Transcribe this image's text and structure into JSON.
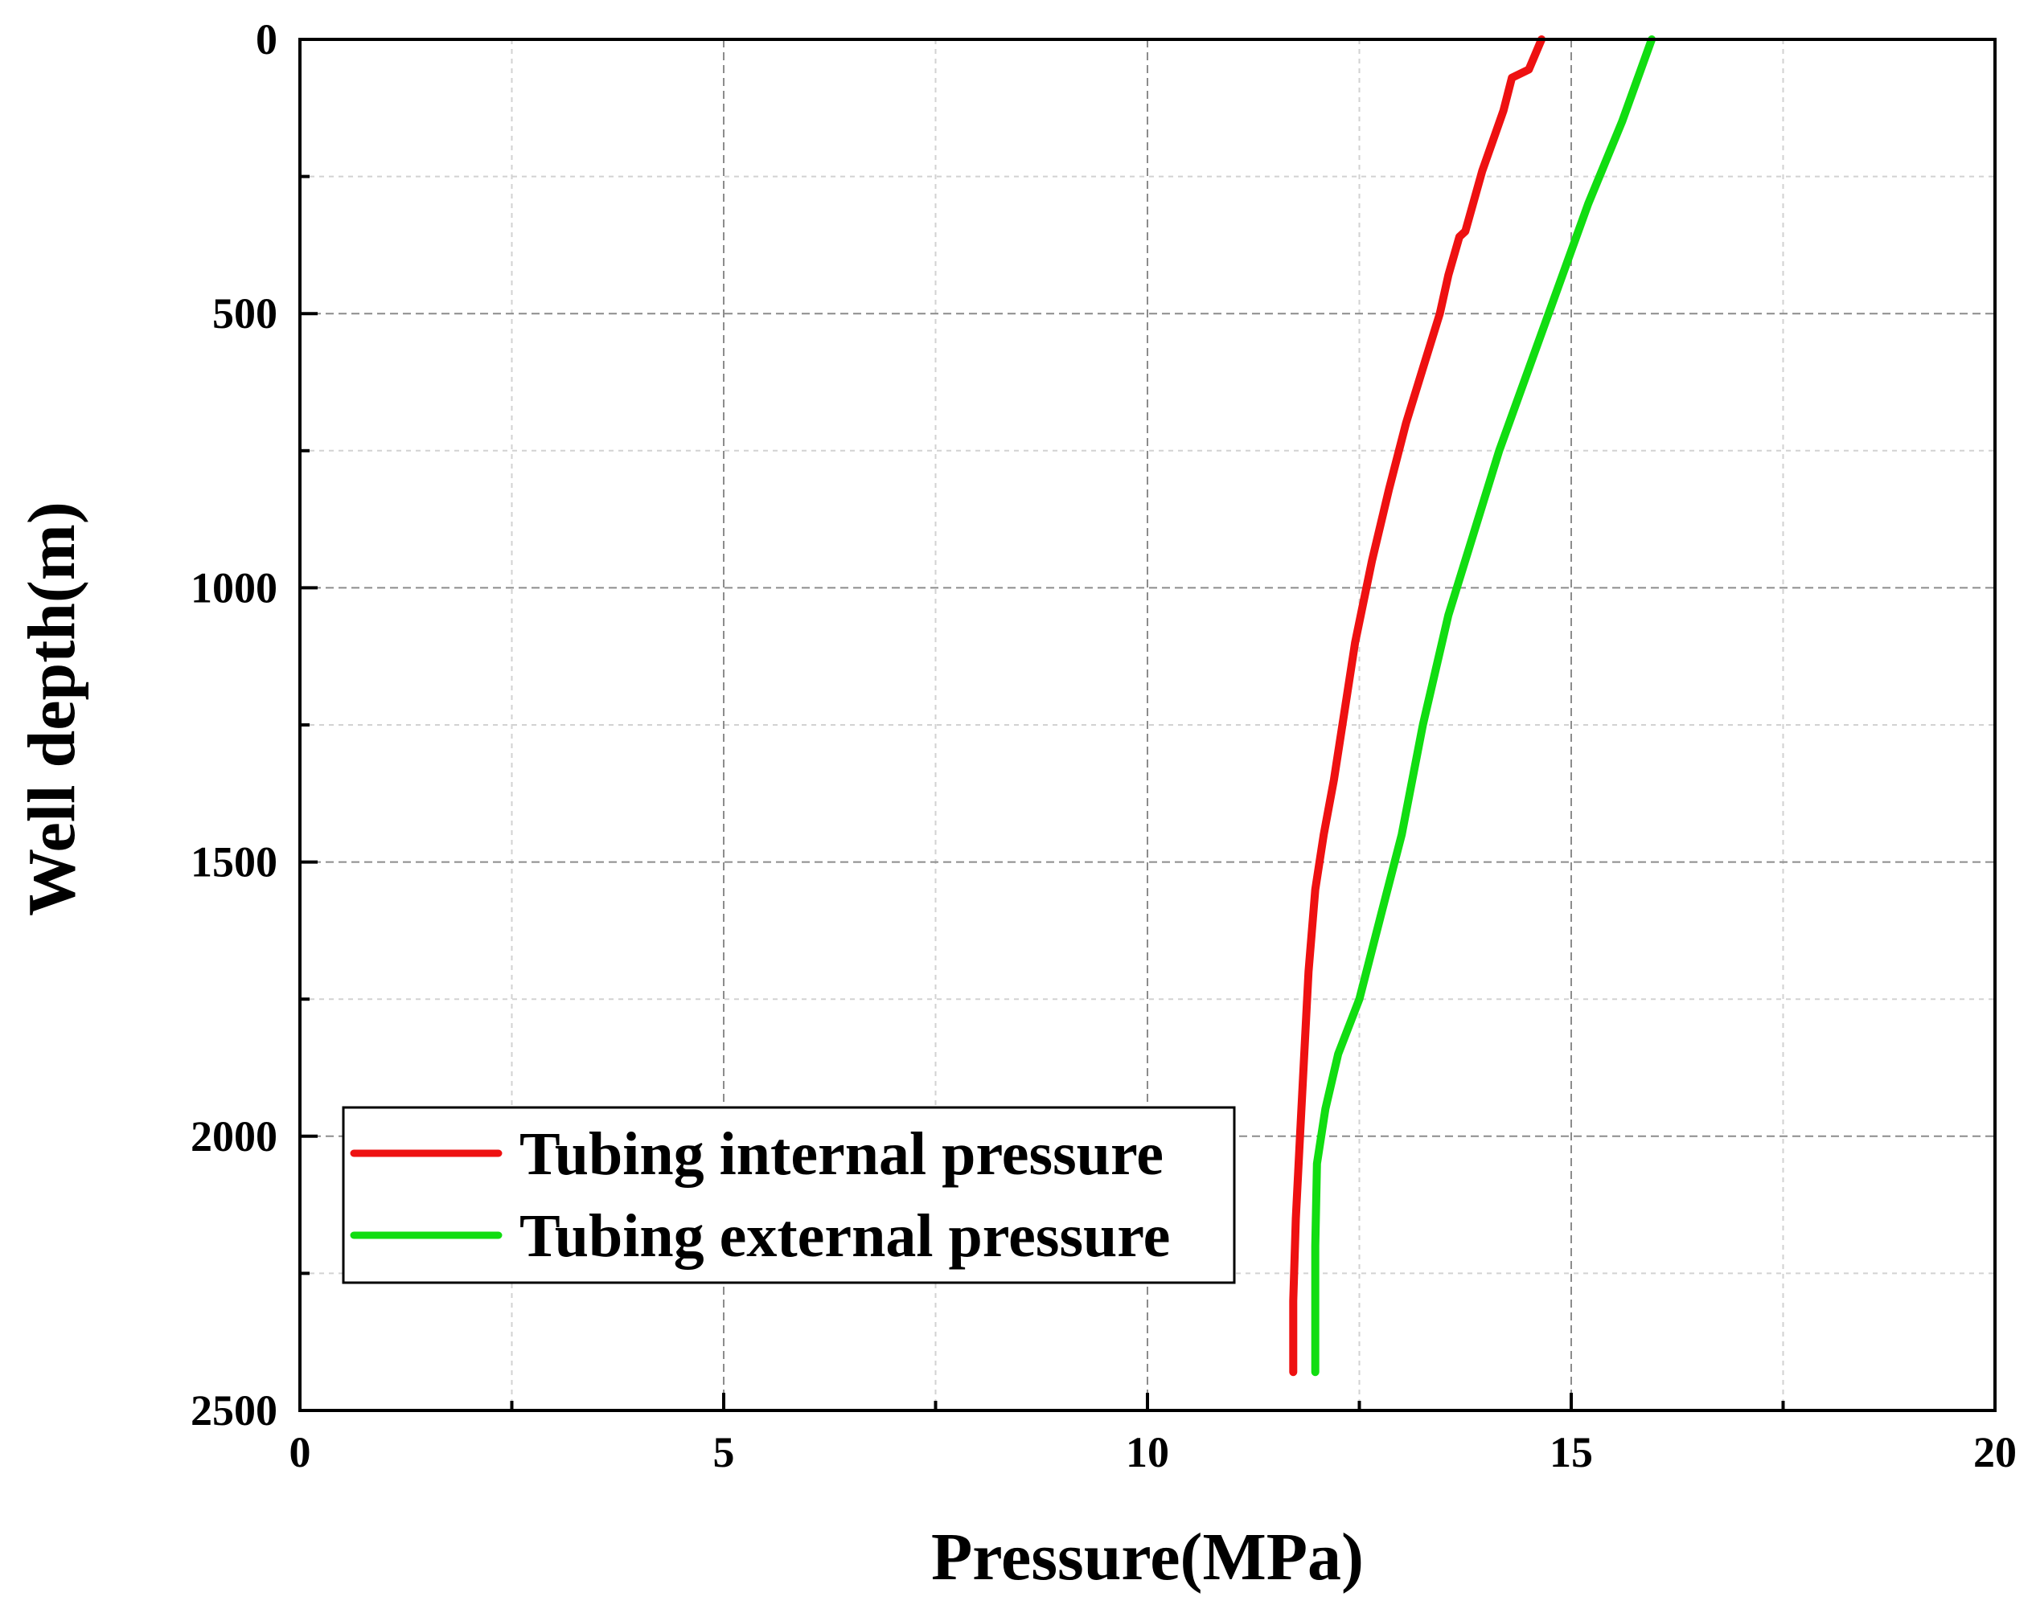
{
  "chart_data": {
    "type": "line",
    "title": "",
    "xlabel": "Pressure(MPa)",
    "ylabel": "Well depth(m)",
    "xlim": [
      0,
      20
    ],
    "ylim": [
      0,
      2500
    ],
    "y_inverted": true,
    "x_ticks": [
      "0",
      "5",
      "10",
      "15",
      "20"
    ],
    "y_ticks": [
      "0",
      "500",
      "1000",
      "1500",
      "2000",
      "2500"
    ],
    "grid": true,
    "legend_position": "lower-left",
    "series": [
      {
        "name": "Tubing internal pressure",
        "color": "#ee1111",
        "points": [
          [
            14.65,
            0
          ],
          [
            14.5,
            55
          ],
          [
            14.3,
            70
          ],
          [
            14.2,
            130
          ],
          [
            13.95,
            240
          ],
          [
            13.75,
            350
          ],
          [
            13.68,
            360
          ],
          [
            13.55,
            430
          ],
          [
            13.45,
            500
          ],
          [
            13.25,
            600
          ],
          [
            13.05,
            700
          ],
          [
            12.85,
            820
          ],
          [
            12.65,
            950
          ],
          [
            12.45,
            1100
          ],
          [
            12.35,
            1200
          ],
          [
            12.2,
            1350
          ],
          [
            12.08,
            1450
          ],
          [
            11.98,
            1550
          ],
          [
            11.9,
            1700
          ],
          [
            11.85,
            1850
          ],
          [
            11.8,
            2000
          ],
          [
            11.75,
            2150
          ],
          [
            11.72,
            2300
          ],
          [
            11.72,
            2430
          ]
        ]
      },
      {
        "name": "Tubing external pressure",
        "color": "#11dd11",
        "points": [
          [
            15.95,
            0
          ],
          [
            15.6,
            150
          ],
          [
            15.2,
            300
          ],
          [
            14.85,
            450
          ],
          [
            14.5,
            600
          ],
          [
            14.15,
            750
          ],
          [
            13.85,
            900
          ],
          [
            13.55,
            1050
          ],
          [
            13.25,
            1250
          ],
          [
            13.0,
            1450
          ],
          [
            12.75,
            1600
          ],
          [
            12.5,
            1750
          ],
          [
            12.25,
            1850
          ],
          [
            12.1,
            1950
          ],
          [
            12.0,
            2050
          ],
          [
            11.98,
            2200
          ],
          [
            11.98,
            2430
          ]
        ]
      }
    ]
  }
}
